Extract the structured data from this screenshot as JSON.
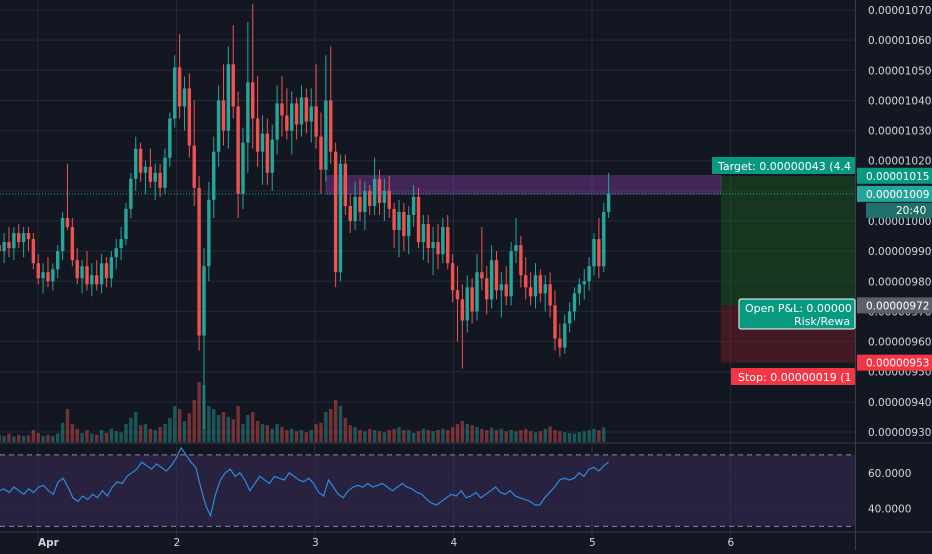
{
  "chart_data": {
    "type": "candlestick",
    "colors": {
      "background": "#131722",
      "grid": "#242a39",
      "up": "#26a69a",
      "down": "#ef5350",
      "axis_text": "#d1d4dc",
      "rsi_line": "#2e8bdc",
      "rsi_band": "#3a2a5a",
      "target_zone": "#1b5e20",
      "stop_zone": "#6b1e24",
      "resistance_box": "#7b3a9a",
      "target_tag": "#089981",
      "stop_tag": "#f23645",
      "pnl_tag": "#089981",
      "price_tag": "#26a69a"
    },
    "price_axis": {
      "min": 9.28e-06,
      "max": 1.072e-05,
      "tick_labels": [
        "0.00001070",
        "0.00001060",
        "0.00001050",
        "0.00001040",
        "0.00001030",
        "0.00001020",
        "0.00001010",
        "0.00001000",
        "0.00000990",
        "0.00000980",
        "0.00000970",
        "0.00000960",
        "0.00000950",
        "0.00000940",
        "0.00000930"
      ],
      "ticks": [
        1.07e-05,
        1.06e-05,
        1.05e-05,
        1.04e-05,
        1.03e-05,
        1.02e-05,
        1.01e-05,
        1e-05,
        9.9e-06,
        9.8e-06,
        9.7e-06,
        9.6e-06,
        9.5e-06,
        9.4e-06,
        9.3e-06
      ]
    },
    "x_axis": {
      "day_labels": [
        "Apr",
        "2",
        "3",
        "4",
        "5",
        "6"
      ],
      "day_positions": [
        1,
        2,
        3,
        4,
        5,
        6
      ]
    },
    "current_price": {
      "value": 1.009e-05,
      "label": "0.00001009",
      "countdown": "20:40"
    },
    "position": {
      "entry": 9.72e-06,
      "target": 1.015e-05,
      "stop": 9.53e-06,
      "entry_label": "0.00000972",
      "target_label": "0.00001015",
      "stop_label": "0.00000953",
      "target_text": "Target: 0.00000043 (4.4",
      "stop_text": "Stop: 0.00000019 (1",
      "pnl_line1": "Open P&L: 0.00000",
      "pnl_line2": "Risk/Rewa",
      "start_x": 5.93,
      "end_x": 6.95
    },
    "resistance_zone": {
      "top": 1.015e-05,
      "bottom": 1.009e-05,
      "start_x": 3.08,
      "end_x": 5.93
    },
    "candles": {
      "x_start": 0.72,
      "x_end": 5.12,
      "ohlc": [
        [
          9.92e-06,
          9.96e-06,
          9.87e-06,
          9.9e-06
        ],
        [
          9.9e-06,
          9.96e-06,
          9.86e-06,
          9.93e-06
        ],
        [
          9.93e-06,
          9.98e-06,
          9.88e-06,
          9.91e-06
        ],
        [
          9.91e-06,
          9.98e-06,
          9.87e-06,
          9.96e-06
        ],
        [
          9.96e-06,
          9.99e-06,
          9.91e-06,
          9.93e-06
        ],
        [
          9.93e-06,
          9.98e-06,
          9.88e-06,
          9.96e-06
        ],
        [
          9.96e-06,
          9.98e-06,
          9.9e-06,
          9.94e-06
        ],
        [
          9.94e-06,
          9.96e-06,
          9.84e-06,
          9.86e-06
        ],
        [
          9.86e-06,
          9.89e-06,
          9.79e-06,
          9.81e-06
        ],
        [
          9.81e-06,
          9.86e-06,
          9.76e-06,
          9.83e-06
        ],
        [
          9.83e-06,
          9.88e-06,
          9.78e-06,
          9.8e-06
        ],
        [
          9.8e-06,
          9.86e-06,
          9.77e-06,
          9.84e-06
        ],
        [
          9.84e-06,
          9.92e-06,
          9.81e-06,
          9.9e-06
        ],
        [
          9.9e-06,
          1.003e-05,
          9.87e-06,
          1.001e-05
        ],
        [
          1.001e-05,
          1.019e-05,
          9.97e-06,
          9.98e-06
        ],
        [
          9.98e-06,
          1.001e-05,
          9.85e-06,
          9.87e-06
        ],
        [
          9.87e-06,
          9.91e-06,
          9.79e-06,
          9.81e-06
        ],
        [
          9.81e-06,
          9.87e-06,
          9.76e-06,
          9.85e-06
        ],
        [
          9.85e-06,
          9.9e-06,
          9.77e-06,
          9.79e-06
        ],
        [
          9.79e-06,
          9.86e-06,
          9.75e-06,
          9.82e-06
        ],
        [
          9.82e-06,
          9.87e-06,
          9.77e-06,
          9.79e-06
        ],
        [
          9.79e-06,
          9.89e-06,
          9.76e-06,
          9.86e-06
        ],
        [
          9.86e-06,
          9.88e-06,
          9.78e-06,
          9.81e-06
        ],
        [
          9.81e-06,
          9.9e-06,
          9.78e-06,
          9.88e-06
        ],
        [
          9.88e-06,
          9.94e-06,
          9.84e-06,
          9.91e-06
        ],
        [
          9.91e-06,
          9.98e-06,
          9.87e-06,
          9.94e-06
        ],
        [
          9.94e-06,
          1.006e-05,
          9.92e-06,
          1.004e-05
        ],
        [
          1.004e-05,
          1.016e-05,
          1.001e-05,
          1.014e-05
        ],
        [
          1.014e-05,
          1.028e-05,
          1.01e-05,
          1.024e-05
        ],
        [
          1.024e-05,
          1.026e-05,
          1.013e-05,
          1.016e-05
        ],
        [
          1.016e-05,
          1.02e-05,
          1.009e-05,
          1.018e-05
        ],
        [
          1.018e-05,
          1.024e-05,
          1.011e-05,
          1.013e-05
        ],
        [
          1.013e-05,
          1.019e-05,
          1.007e-05,
          1.016e-05
        ],
        [
          1.016e-05,
          1.019e-05,
          1.008e-05,
          1.011e-05
        ],
        [
          1.011e-05,
          1.024e-05,
          1.009e-05,
          1.021e-05
        ],
        [
          1.021e-05,
          1.036e-05,
          1.018e-05,
          1.034e-05
        ],
        [
          1.034e-05,
          1.055e-05,
          1.031e-05,
          1.051e-05
        ],
        [
          1.051e-05,
          1.062e-05,
          1.034e-05,
          1.038e-05
        ],
        [
          1.038e-05,
          1.048e-05,
          1.03e-05,
          1.044e-05
        ],
        [
          1.044e-05,
          1.049e-05,
          1.021e-05,
          1.025e-05
        ],
        [
          1.025e-05,
          1.04e-05,
          1.005e-05,
          1.011e-05
        ],
        [
          1.011e-05,
          1.015e-05,
          9.57e-06,
          9.62e-06
        ],
        [
          9.62e-06,
          9.91e-06,
          9.31e-06,
          9.85e-06
        ],
        [
          9.85e-06,
          1.013e-05,
          9.8e-06,
          1.007e-05
        ],
        [
          1.007e-05,
          1.028e-05,
          1.001e-05,
          1.023e-05
        ],
        [
          1.023e-05,
          1.045e-05,
          1.018e-05,
          1.04e-05
        ],
        [
          1.04e-05,
          1.052e-05,
          1.025e-05,
          1.03e-05
        ],
        [
          1.03e-05,
          1.058e-05,
          1.024e-05,
          1.052e-05
        ],
        [
          1.052e-05,
          1.065e-05,
          1.034e-05,
          1.038e-05
        ],
        [
          1.038e-05,
          1.043e-05,
          1.001e-05,
          1.009e-05
        ],
        [
          1.009e-05,
          1.031e-05,
          1.004e-05,
          1.026e-05
        ],
        [
          1.026e-05,
          1.066e-05,
          1.016e-05,
          1.046e-05
        ],
        [
          1.046e-05,
          1.072e-05,
          1.024e-05,
          1.034e-05
        ],
        [
          1.034e-05,
          1.048e-05,
          1.018e-05,
          1.023e-05
        ],
        [
          1.023e-05,
          1.035e-05,
          1.012e-05,
          1.029e-05
        ],
        [
          1.029e-05,
          1.034e-05,
          1.012e-05,
          1.016e-05
        ],
        [
          1.016e-05,
          1.032e-05,
          1.01e-05,
          1.027e-05
        ],
        [
          1.027e-05,
          1.045e-05,
          1.022e-05,
          1.039e-05
        ],
        [
          1.039e-05,
          1.048e-05,
          1.028e-05,
          1.035e-05
        ],
        [
          1.035e-05,
          1.044e-05,
          1.027e-05,
          1.03e-05
        ],
        [
          1.03e-05,
          1.043e-05,
          1.022e-05,
          1.039e-05
        ],
        [
          1.039e-05,
          1.041e-05,
          1.027e-05,
          1.032e-05
        ],
        [
          1.032e-05,
          1.045e-05,
          1.028e-05,
          1.041e-05
        ],
        [
          1.041e-05,
          1.044e-05,
          1.029e-05,
          1.033e-05
        ],
        [
          1.033e-05,
          1.044e-05,
          1.026e-05,
          1.038e-05
        ],
        [
          1.038e-05,
          1.052e-05,
          1.024e-05,
          1.028e-05
        ],
        [
          1.028e-05,
          1.036e-05,
          1.009e-05,
          1.017e-05
        ],
        [
          1.017e-05,
          1.055e-05,
          1.013e-05,
          1.04e-05
        ],
        [
          1.04e-05,
          1.058e-05,
          1.019e-05,
          1.023e-05
        ],
        [
          1.023e-05,
          1.026e-05,
          9.78e-06,
          9.83e-06
        ],
        [
          9.83e-06,
          1.022e-05,
          9.8e-06,
          1.019e-05
        ],
        [
          1.019e-05,
          1.022e-05,
          1.002e-05,
          1.005e-05
        ],
        [
          1.005e-05,
          1.009e-05,
          9.96e-06,
          1e-05
        ],
        [
          1e-05,
          1.013e-05,
          9.97e-06,
          1.008e-05
        ],
        [
          1.008e-05,
          1.014e-05,
          1e-05,
          1.003e-05
        ],
        [
          1.003e-05,
          1.013e-05,
          9.97e-06,
          1.01e-05
        ],
        [
          1.01e-05,
          1.012e-05,
          1.002e-05,
          1.005e-05
        ],
        [
          1.005e-05,
          1.021e-05,
          1.002e-05,
          1.014e-05
        ],
        [
          1.014e-05,
          1.017e-05,
          1.002e-05,
          1.006e-05
        ],
        [
          1.006e-05,
          1.014e-05,
          1e-05,
          1.01e-05
        ],
        [
          1.01e-05,
          1.015e-05,
          1.001e-05,
          1.004e-05
        ],
        [
          1.004e-05,
          1.006e-05,
          9.91e-06,
          9.97e-06
        ],
        [
          9.97e-06,
          1.007e-05,
          9.88e-06,
          1.003e-05
        ],
        [
          1.003e-05,
          1.006e-05,
          9.9e-06,
          9.95e-06
        ],
        [
          9.95e-06,
          1.005e-05,
          9.89e-06,
          1.002e-05
        ],
        [
          1.002e-05,
          1.012e-05,
          9.98e-06,
          1.008e-05
        ],
        [
          1.008e-05,
          1.011e-05,
          9.91e-06,
          9.93e-06
        ],
        [
          9.93e-06,
          1.002e-05,
          9.87e-06,
          9.99e-06
        ],
        [
          9.99e-06,
          1.002e-05,
          9.86e-06,
          9.91e-06
        ],
        [
          9.91e-06,
          9.98e-06,
          9.82e-06,
          9.93e-06
        ],
        [
          9.93e-06,
          9.99e-06,
          9.84e-06,
          9.89e-06
        ],
        [
          9.89e-06,
          1.001e-05,
          9.86e-06,
          9.98e-06
        ],
        [
          9.98e-06,
          1.002e-05,
          9.84e-06,
          9.86e-06
        ],
        [
          9.86e-06,
          9.89e-06,
          9.73e-06,
          9.77e-06
        ],
        [
          9.77e-06,
          9.85e-06,
          9.6e-06,
          9.74e-06
        ],
        [
          9.74e-06,
          9.79e-06,
          9.51e-06,
          9.67e-06
        ],
        [
          9.67e-06,
          9.82e-06,
          9.63e-06,
          9.78e-06
        ],
        [
          9.78e-06,
          9.81e-06,
          9.66e-06,
          9.7e-06
        ],
        [
          9.7e-06,
          9.89e-06,
          9.67e-06,
          9.83e-06
        ],
        [
          9.83e-06,
          9.98e-06,
          9.77e-06,
          9.81e-06
        ],
        [
          9.81e-06,
          9.85e-06,
          9.69e-06,
          9.74e-06
        ],
        [
          9.74e-06,
          9.92e-06,
          9.71e-06,
          9.87e-06
        ],
        [
          9.87e-06,
          9.9e-06,
          9.74e-06,
          9.77e-06
        ],
        [
          9.77e-06,
          9.83e-06,
          9.68e-06,
          9.79e-06
        ],
        [
          9.79e-06,
          9.85e-06,
          9.72e-06,
          9.75e-06
        ],
        [
          9.75e-06,
          9.93e-06,
          9.72e-06,
          9.9e-06
        ],
        [
          9.9e-06,
          1.001e-05,
          9.86e-06,
          9.92e-06
        ],
        [
          9.92e-06,
          9.95e-06,
          9.78e-06,
          9.82e-06
        ],
        [
          9.82e-06,
          9.88e-06,
          9.74e-06,
          9.78e-06
        ],
        [
          9.78e-06,
          9.83e-06,
          9.72e-06,
          9.75e-06
        ],
        [
          9.75e-06,
          9.86e-06,
          9.71e-06,
          9.82e-06
        ],
        [
          9.82e-06,
          9.84e-06,
          9.73e-06,
          9.76e-06
        ],
        [
          9.76e-06,
          9.82e-06,
          9.7e-06,
          9.79e-06
        ],
        [
          9.79e-06,
          9.83e-06,
          9.68e-06,
          9.72e-06
        ],
        [
          9.72e-06,
          9.77e-06,
          9.57e-06,
          9.61e-06
        ],
        [
          9.61e-06,
          9.66e-06,
          9.55e-06,
          9.58e-06
        ],
        [
          9.58e-06,
          9.69e-06,
          9.56e-06,
          9.66e-06
        ],
        [
          9.66e-06,
          9.73e-06,
          9.63e-06,
          9.7e-06
        ],
        [
          9.7e-06,
          9.78e-06,
          9.67e-06,
          9.76e-06
        ],
        [
          9.76e-06,
          9.81e-06,
          9.72e-06,
          9.79e-06
        ],
        [
          9.79e-06,
          9.84e-06,
          9.74e-06,
          9.8e-06
        ],
        [
          9.8e-06,
          9.88e-06,
          9.77e-06,
          9.85e-06
        ],
        [
          9.85e-06,
          9.96e-06,
          9.82e-06,
          9.94e-06
        ],
        [
          9.94e-06,
          1.001e-05,
          9.81e-06,
          9.85e-06
        ],
        [
          9.85e-06,
          1.006e-05,
          9.83e-06,
          1.003e-05
        ],
        [
          1.003e-05,
          1.016e-05,
          1.001e-05,
          1.009e-05
        ]
      ],
      "volume": [
        0.12,
        0.1,
        0.14,
        0.09,
        0.12,
        0.1,
        0.11,
        0.2,
        0.15,
        0.1,
        0.12,
        0.1,
        0.14,
        0.32,
        0.55,
        0.3,
        0.22,
        0.15,
        0.2,
        0.14,
        0.12,
        0.2,
        0.15,
        0.22,
        0.18,
        0.16,
        0.3,
        0.4,
        0.5,
        0.28,
        0.3,
        0.22,
        0.2,
        0.25,
        0.3,
        0.4,
        0.6,
        0.55,
        0.35,
        0.48,
        0.7,
        1.0,
        0.95,
        0.6,
        0.55,
        0.45,
        0.5,
        0.42,
        0.38,
        0.6,
        0.3,
        0.45,
        0.5,
        0.35,
        0.3,
        0.28,
        0.22,
        0.3,
        0.25,
        0.2,
        0.22,
        0.18,
        0.2,
        0.16,
        0.2,
        0.3,
        0.32,
        0.5,
        0.55,
        0.7,
        0.6,
        0.4,
        0.28,
        0.25,
        0.2,
        0.18,
        0.22,
        0.2,
        0.18,
        0.16,
        0.2,
        0.22,
        0.25,
        0.2,
        0.2,
        0.15,
        0.18,
        0.22,
        0.2,
        0.18,
        0.2,
        0.22,
        0.2,
        0.25,
        0.3,
        0.35,
        0.3,
        0.28,
        0.25,
        0.22,
        0.2,
        0.24,
        0.2,
        0.22,
        0.18,
        0.2,
        0.18,
        0.2,
        0.22,
        0.18,
        0.16,
        0.18,
        0.22,
        0.26,
        0.2,
        0.18,
        0.16,
        0.15,
        0.14,
        0.16,
        0.18,
        0.2,
        0.22,
        0.2,
        0.24
      ]
    },
    "rsi": {
      "tick_labels": [
        "60.0000",
        "40.0000"
      ],
      "ticks": [
        60,
        40
      ],
      "range": [
        28,
        75
      ],
      "band": [
        30,
        70
      ],
      "values": [
        50,
        51,
        49,
        52,
        50,
        48,
        51,
        49,
        52,
        53,
        50,
        48,
        55,
        57,
        52,
        46,
        44,
        47,
        45,
        48,
        46,
        50,
        47,
        52,
        55,
        54,
        58,
        60,
        62,
        66,
        64,
        62,
        65,
        63,
        61,
        64,
        68,
        74,
        70,
        66,
        63,
        52,
        42,
        36,
        48,
        56,
        60,
        62,
        58,
        60,
        56,
        50,
        54,
        58,
        56,
        54,
        58,
        57,
        56,
        60,
        58,
        56,
        55,
        57,
        54,
        49,
        47,
        56,
        52,
        48,
        46,
        50,
        52,
        53,
        52,
        54,
        52,
        53,
        54,
        52,
        50,
        52,
        54,
        52,
        51,
        49,
        48,
        45,
        43,
        42,
        44,
        46,
        48,
        47,
        50,
        46,
        47,
        49,
        46,
        48,
        50,
        52,
        49,
        48,
        50,
        47,
        46,
        45,
        44,
        42,
        42,
        46,
        49,
        52,
        56,
        57,
        56,
        57,
        60,
        58,
        62,
        63,
        61,
        64,
        66
      ]
    }
  }
}
